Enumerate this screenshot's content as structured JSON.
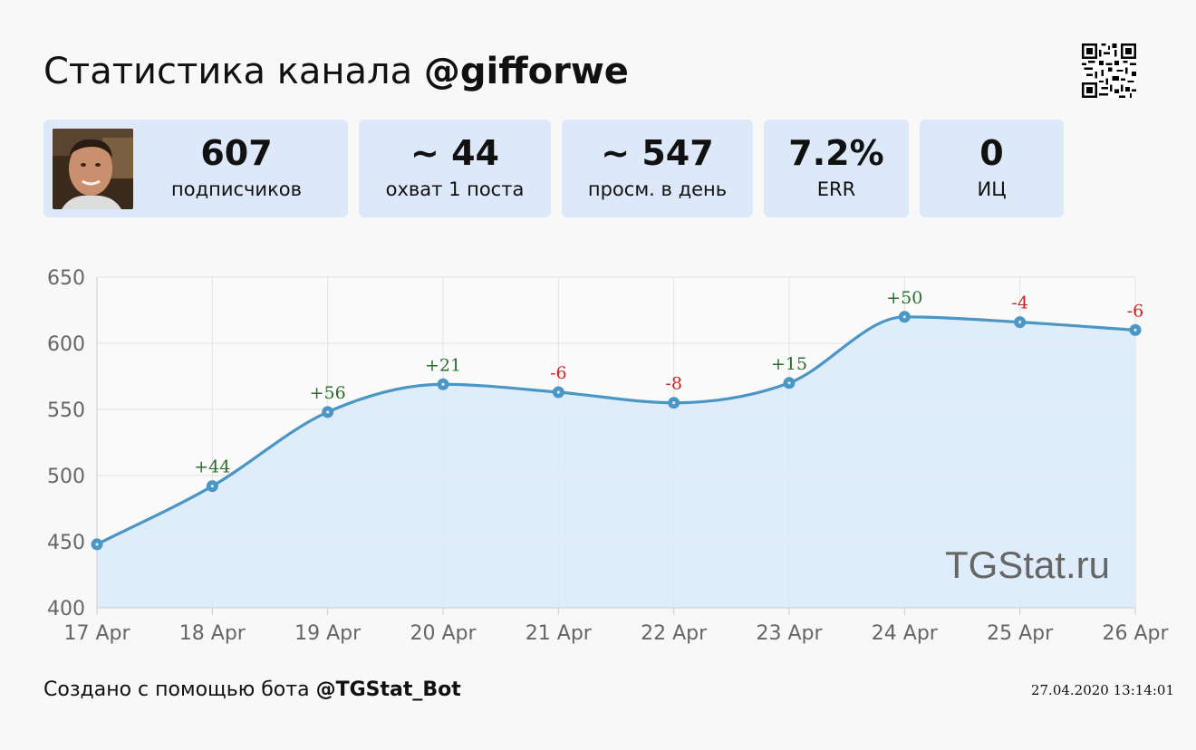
{
  "header": {
    "title_prefix": "Статистика канала",
    "channel": "@gifforwe"
  },
  "stats": [
    {
      "value": "607",
      "label": "подписчиков"
    },
    {
      "value": "~ 44",
      "label": "охват 1 поста"
    },
    {
      "value": "~ 547",
      "label": "просм. в день"
    },
    {
      "value": "7.2%",
      "label": "ERR"
    },
    {
      "value": "0",
      "label": "ИЦ"
    }
  ],
  "watermark": "TGStat.ru",
  "footer": {
    "prefix": "Создано с помощью бота",
    "bot": "@TGStat_Bot",
    "timestamp": "27.04.2020 13:14:01"
  },
  "chart_data": {
    "type": "area",
    "x": [
      "17 Apr",
      "18 Apr",
      "19 Apr",
      "20 Apr",
      "21 Apr",
      "22 Apr",
      "23 Apr",
      "24 Apr",
      "25 Apr",
      "26 Apr"
    ],
    "values": [
      448,
      492,
      548,
      569,
      563,
      555,
      570,
      620,
      616,
      610
    ],
    "deltas": [
      "",
      "+44",
      "+56",
      "+21",
      "-6",
      "-8",
      "+15",
      "+50",
      "-4",
      "-6"
    ],
    "ylim": [
      400,
      650
    ],
    "yticks": [
      400,
      450,
      500,
      550,
      600,
      650
    ],
    "grid": true,
    "colors": {
      "line": "#4a96c4",
      "fill": "#dceaf9",
      "point": "#4a96c4",
      "positive": "#2e6b2e",
      "negative": "#cc2222"
    }
  }
}
